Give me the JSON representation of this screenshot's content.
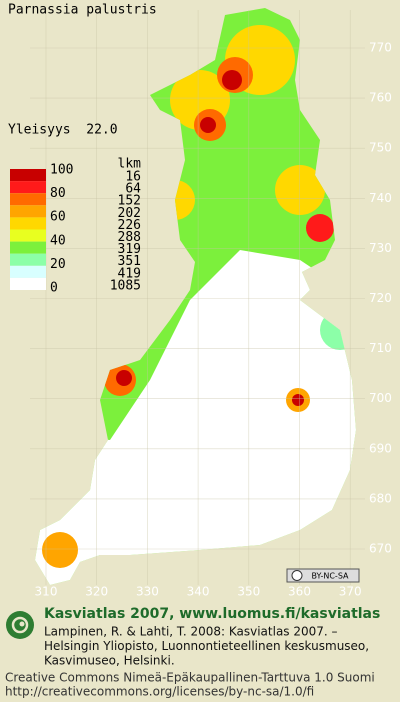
{
  "title": "Parnassia palustris",
  "frequency": "Yleisyys  22.0",
  "legend": {
    "count_header": "lkm",
    "scale_labels": [
      100,
      80,
      60,
      40,
      20,
      0
    ],
    "counts": [
      16,
      64,
      152,
      202,
      226,
      288,
      319,
      351,
      419,
      1085
    ],
    "colors": [
      "#c80000",
      "#ff1a1a",
      "#ff6a00",
      "#ffa500",
      "#ffd800",
      "#e8ff20",
      "#7cf03c",
      "#8cffa8",
      "#d8ffff",
      "#ffffff"
    ]
  },
  "map": {
    "y_ticks": [
      770,
      760,
      750,
      740,
      730,
      720,
      710,
      700,
      690,
      680,
      670
    ],
    "x_ticks": [
      310,
      320,
      330,
      340,
      350,
      360,
      370
    ]
  },
  "license_badge": "BY-NC-SA",
  "footer": {
    "heading": "Kasviatlas 2007, www.luomus.fi/kasviatlas",
    "citation": [
      "Lampinen, R. & Lahti, T. 2008: Kasviatlas 2007. –",
      "Helsingin Yliopisto, Luonnontieteellinen keskusmuseo,",
      "Kasvimuseo, Helsinki."
    ],
    "license": [
      "Creative Commons Nimeä-Epäkaupallinen-Tarttuva 1.0 Suomi",
      "http://creativecommons.org/licenses/by-nc-sa/1.0/fi"
    ]
  }
}
